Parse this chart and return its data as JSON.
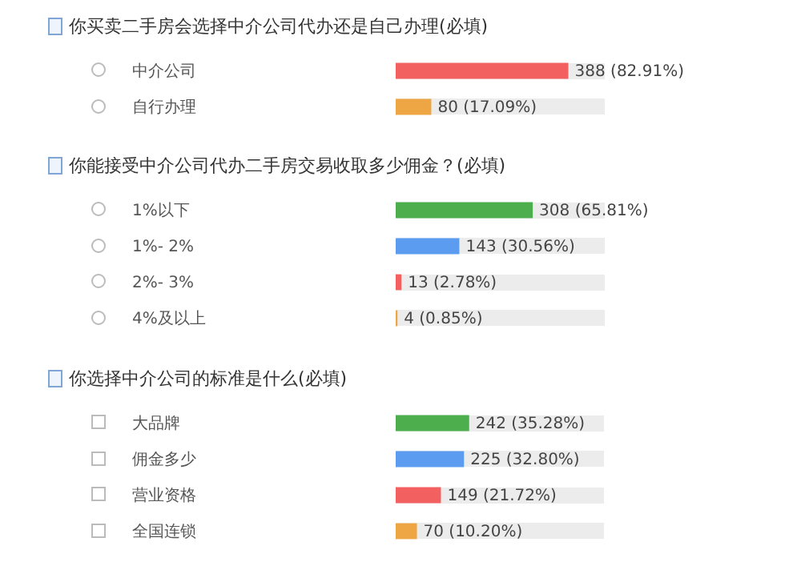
{
  "chart_data": [
    {
      "type": "bar",
      "orientation": "horizontal",
      "title": "你买卖二手房会选择中介公司代办还是自己办理(必填)",
      "categories": [
        "中介公司",
        "自行办理"
      ],
      "values": [
        388,
        80
      ],
      "colors": [
        "#f36060",
        "#eea644"
      ],
      "value_labels": [
        "388 (82.91%)",
        "80 (17.09%)"
      ],
      "grid": "y",
      "tick_labels": "y"
    },
    {
      "type": "bar",
      "orientation": "horizontal",
      "title": "你能接受中介公司代办二手房交易收取多少佣金？(必填)",
      "categories": [
        "1%以下",
        "1%- 2%",
        "2%- 3%",
        "4%及以上"
      ],
      "values": [
        308,
        143,
        13,
        4
      ],
      "colors": [
        "#4cae4c",
        "#5b9cf0",
        "#f36060",
        "#eea644"
      ],
      "value_labels": [
        "308 (65.81%)",
        "143 (30.56%)",
        "13 (2.78%)",
        "4 (0.85%)"
      ],
      "grid": "y",
      "tick_labels": "y"
    },
    {
      "type": "bar",
      "orientation": "horizontal",
      "title": "你选择中介公司的标准是什么(必填)",
      "categories": [
        "大品牌",
        "佣金多少",
        "营业资格",
        "全国连锁"
      ],
      "values": [
        242,
        225,
        149,
        70
      ],
      "colors": [
        "#4cae4c",
        "#5b9cf0",
        "#f36060",
        "#eea644"
      ],
      "value_labels": [
        "242 (35.28%)",
        "225 (32.80%)",
        "149 (21.72%)",
        "70 (10.20%)"
      ],
      "grid": "y",
      "tick_labels": "y"
    }
  ]
}
